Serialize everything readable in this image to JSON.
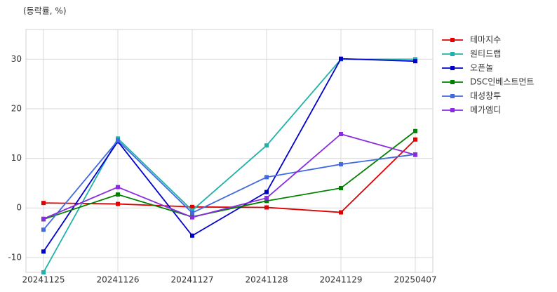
{
  "chart_data": {
    "type": "line",
    "y_label": "(등락률, %)",
    "categories": [
      "20241125",
      "20241126",
      "20241127",
      "20241128",
      "20241129",
      "20250407"
    ],
    "series": [
      {
        "name": "테마지수",
        "color": "#e00000",
        "values": [
          1.0,
          0.8,
          0.2,
          0.1,
          -0.9,
          13.8
        ]
      },
      {
        "name": "원티드랩",
        "color": "#20b2aa",
        "values": [
          -13,
          14.0,
          -0.5,
          12.6,
          30.0,
          30.0
        ]
      },
      {
        "name": "오픈놀",
        "color": "#0000cd",
        "values": [
          -8.8,
          13.4,
          -5.6,
          3.2,
          30.1,
          29.6
        ]
      },
      {
        "name": "DSC인베스트먼트",
        "color": "#008000",
        "values": [
          -2.3,
          2.7,
          -1.8,
          1.4,
          4.0,
          15.5
        ]
      },
      {
        "name": "대성창투",
        "color": "#4169e1",
        "values": [
          -4.4,
          13.6,
          -1.0,
          6.2,
          8.8,
          10.8
        ]
      },
      {
        "name": "메가엠디",
        "color": "#8a2be2",
        "values": [
          -2.2,
          4.2,
          -1.9,
          2.0,
          14.9,
          10.7
        ]
      }
    ],
    "ylim": [
      -13,
      36
    ],
    "yticks": [
      -10,
      0,
      10,
      20,
      30
    ],
    "grid": true,
    "legend": "right"
  }
}
